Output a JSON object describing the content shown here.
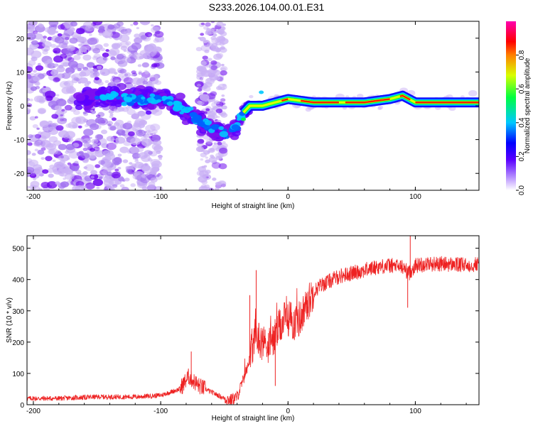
{
  "title": "S233.2026.104.00.01.E31",
  "chart_data": [
    {
      "type": "heatmap",
      "name": "spectrogram",
      "xlabel": "Height of straight line (km)",
      "ylabel": "Frequency (Hz)",
      "xlim": [
        -205,
        150
      ],
      "ylim": [
        -25,
        25
      ],
      "xticks": [
        -200,
        -100,
        0,
        100
      ],
      "yticks": [
        -20,
        -10,
        0,
        10,
        20
      ],
      "colorbar": {
        "label": "Normalized spectral amplitude",
        "range": [
          0,
          1
        ],
        "ticks": [
          "0.0",
          "0.2",
          "0.4",
          "0.6",
          "0.8"
        ],
        "colors": [
          "#ffffff",
          "#7a00ff",
          "#0000ff",
          "#00ffff",
          "#00ff00",
          "#ffff00",
          "#ff0000",
          "#ff00ff"
        ]
      },
      "ridge": {
        "x": [
          -160,
          -140,
          -120,
          -100,
          -90,
          -80,
          -70,
          -60,
          -50,
          -40,
          -35,
          -30,
          -20,
          -10,
          0,
          20,
          40,
          60,
          80,
          90,
          100,
          120,
          150
        ],
        "y": [
          2,
          3,
          2,
          2,
          1,
          -2,
          -4,
          -7,
          -8,
          -6,
          -2,
          0,
          0,
          1,
          2,
          1,
          1,
          1,
          2,
          3,
          1,
          1,
          1
        ]
      }
    },
    {
      "type": "line",
      "name": "snr",
      "xlabel": "Height of straight line (km)",
      "ylabel": "SNR (10 * v/v)",
      "xlim": [
        -205,
        150
      ],
      "ylim": [
        0,
        540
      ],
      "xticks": [
        -200,
        -100,
        0,
        100
      ],
      "yticks": [
        0,
        100,
        200,
        300,
        400,
        500
      ],
      "color": "#ee2222",
      "x": [
        -205,
        -180,
        -150,
        -120,
        -100,
        -85,
        -78,
        -70,
        -60,
        -50,
        -45,
        -40,
        -35,
        -30,
        -25,
        -20,
        -15,
        -10,
        -5,
        0,
        5,
        10,
        15,
        20,
        25,
        30,
        40,
        50,
        60,
        70,
        80,
        90,
        95,
        100,
        110,
        120,
        130,
        140,
        150
      ],
      "y": [
        20,
        20,
        25,
        25,
        30,
        50,
        90,
        60,
        40,
        20,
        15,
        25,
        80,
        150,
        220,
        200,
        190,
        220,
        260,
        280,
        260,
        280,
        320,
        360,
        380,
        390,
        410,
        420,
        430,
        440,
        445,
        440,
        420,
        445,
        450,
        450,
        448,
        445,
        450
      ],
      "spikes": [
        {
          "x": -76,
          "y": 170
        },
        {
          "x": -30,
          "y": 350
        },
        {
          "x": -25,
          "y": 430
        },
        {
          "x": -18,
          "y": 240
        },
        {
          "x": -10,
          "y": 60
        },
        {
          "x": 96,
          "y": 540
        },
        {
          "x": 94,
          "y": 310
        }
      ]
    }
  ]
}
